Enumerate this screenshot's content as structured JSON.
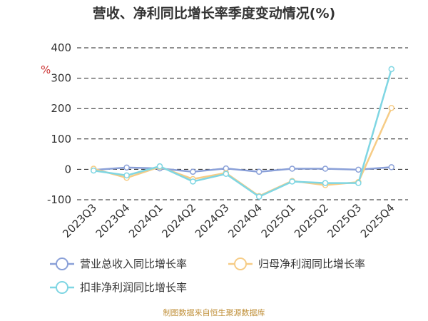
{
  "chart_data": {
    "type": "line",
    "title": "营收、净利同比增长率季度变动情况(%)",
    "ylabel": "%",
    "ylim": [
      -100,
      400
    ],
    "yticks": [
      400,
      300,
      200,
      100,
      0,
      -100
    ],
    "categories": [
      "2023Q3",
      "2023Q4",
      "2024Q1",
      "2024Q2",
      "2024Q3",
      "2024Q4",
      "2025Q1",
      "2025Q2",
      "2025Q3",
      "2025Q4"
    ],
    "series": [
      {
        "name": "营业总收入同比增长率",
        "color": "#8aa0d8",
        "values": [
          -2,
          6,
          3,
          -8,
          3,
          -8,
          2,
          2,
          -1,
          7
        ]
      },
      {
        "name": "归母净利润同比增长率",
        "color": "#f6cc86",
        "values": [
          2,
          -28,
          8,
          -32,
          -12,
          -88,
          -38,
          -52,
          -42,
          202
        ]
      },
      {
        "name": "扣非净利润同比增长率",
        "color": "#7fd6e3",
        "values": [
          -4,
          -20,
          10,
          -40,
          -15,
          -90,
          -40,
          -45,
          -45,
          330
        ]
      }
    ],
    "grid": true,
    "legend_position": "bottom"
  },
  "colors": {
    "title": "#333333",
    "axis_text": "#333333",
    "ylabel": "#cc3333",
    "grid": "#222222",
    "source": "#c0903a"
  },
  "source": "制图数据来自恒生聚源数据库"
}
